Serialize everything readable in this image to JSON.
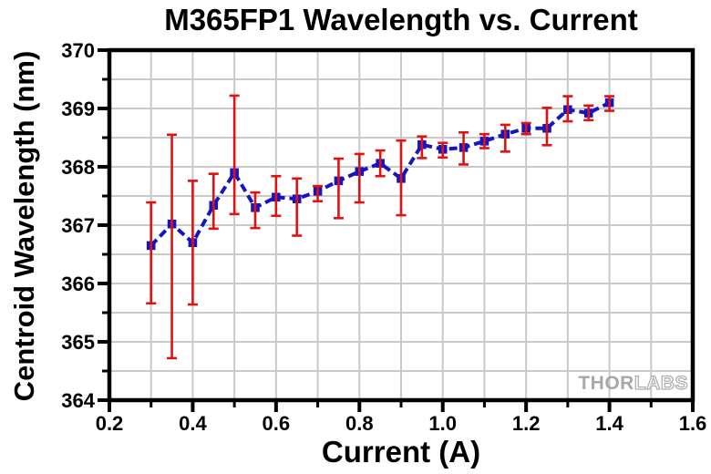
{
  "chart_data": {
    "type": "line",
    "title": "M365FP1 Wavelength vs. Current",
    "xlabel": "Current (A)",
    "ylabel": "Centroid Wavelength (nm)",
    "xlim": [
      0.2,
      1.6
    ],
    "ylim": [
      364,
      370
    ],
    "x_tick_labels": [
      "0.2",
      "0.4",
      "0.6",
      "0.8",
      "1.0",
      "1.2",
      "1.4",
      "1.6"
    ],
    "y_tick_labels": [
      "364",
      "365",
      "366",
      "367",
      "368",
      "369",
      "370"
    ],
    "x_major_step": 0.2,
    "y_major_step": 1,
    "x_minor_step": 0.1,
    "y_minor_step": 0.5,
    "grid": {
      "show": true,
      "on": "minor",
      "color": "#c9c9c9"
    },
    "legend": "none",
    "line_style": "dashed",
    "marker": "square",
    "colors": {
      "line": "#1515c4",
      "marker": "#1515c4",
      "error_bar": "#e01212",
      "axis": "#000000",
      "text": "#000000"
    },
    "series": [
      {
        "name": "Centroid Wavelength",
        "x": [
          0.3,
          0.35,
          0.4,
          0.45,
          0.5,
          0.55,
          0.6,
          0.65,
          0.7,
          0.75,
          0.8,
          0.85,
          0.9,
          0.95,
          1.0,
          1.05,
          1.1,
          1.15,
          1.2,
          1.25,
          1.3,
          1.35,
          1.4
        ],
        "y": [
          366.65,
          367.02,
          366.7,
          367.34,
          367.9,
          367.3,
          367.48,
          367.45,
          367.58,
          367.76,
          367.92,
          368.06,
          367.8,
          368.38,
          368.3,
          368.33,
          368.44,
          368.56,
          368.66,
          368.66,
          368.98,
          368.92,
          369.1
        ],
        "err_top": [
          367.39,
          368.55,
          367.76,
          367.88,
          369.22,
          367.56,
          367.84,
          367.8,
          367.67,
          368.14,
          368.22,
          368.28,
          368.45,
          368.52,
          368.41,
          368.59,
          368.56,
          368.72,
          368.75,
          369.01,
          369.21,
          369.05,
          369.21
        ],
        "err_bottom": [
          365.66,
          364.72,
          365.64,
          366.94,
          367.19,
          366.95,
          367.16,
          366.82,
          367.41,
          367.12,
          367.39,
          367.84,
          367.17,
          368.15,
          368.16,
          368.04,
          368.32,
          368.26,
          368.56,
          368.37,
          368.78,
          368.8,
          368.96
        ]
      }
    ],
    "watermark": {
      "solid": "THOR",
      "outline": "LABS"
    }
  }
}
